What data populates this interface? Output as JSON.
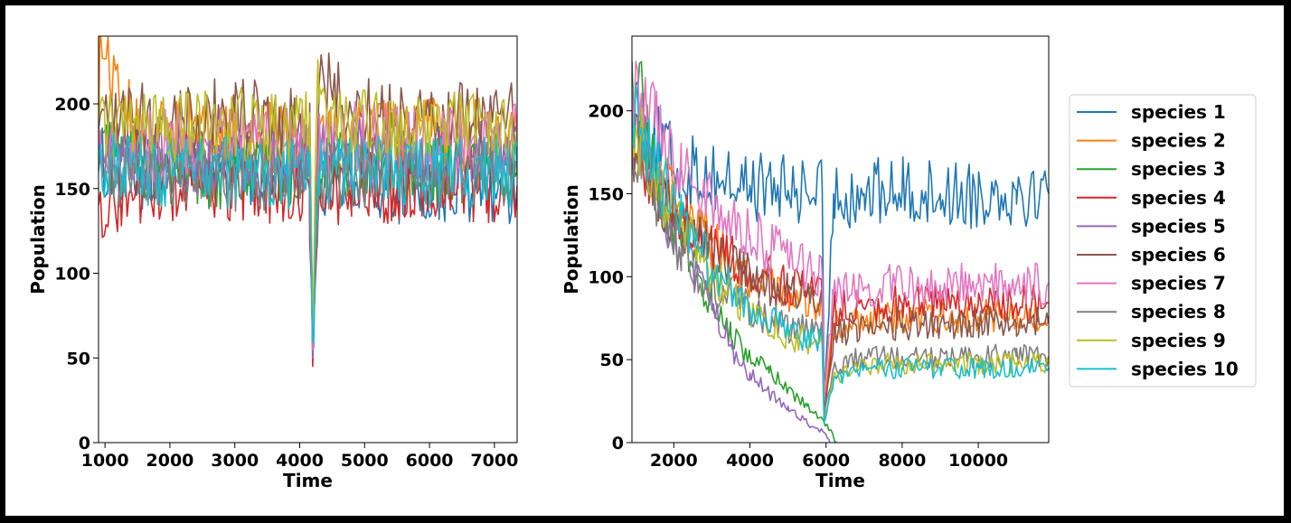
{
  "chart_data": [
    {
      "type": "line",
      "title": "",
      "xlabel": "Time",
      "ylabel": "Population",
      "xlim": [
        900,
        7350
      ],
      "ylim": [
        0,
        240
      ],
      "xticks": [
        1000,
        2000,
        3000,
        4000,
        5000,
        6000,
        7000
      ],
      "yticks": [
        0,
        50,
        100,
        150,
        200
      ],
      "series": [
        {
          "name": "species 1",
          "color": "#1f77b4",
          "x": [
            900,
            1500,
            2200,
            3000,
            3800,
            4150,
            4200,
            4300,
            4800,
            5500,
            6200,
            6900,
            7350
          ],
          "y": [
            165,
            160,
            158,
            163,
            160,
            160,
            65,
            155,
            155,
            150,
            152,
            148,
            150
          ]
        },
        {
          "name": "species 2",
          "color": "#ff7f0e",
          "x": [
            900,
            920,
            1500,
            2200,
            3000,
            3800,
            4150,
            4200,
            4300,
            4800,
            5500,
            6200,
            6900,
            7350
          ],
          "y": [
            175,
            238,
            180,
            185,
            182,
            178,
            175,
            50,
            178,
            182,
            180,
            183,
            180,
            185
          ]
        },
        {
          "name": "species 3",
          "color": "#2ca02c",
          "x": [
            900,
            1500,
            2200,
            3000,
            3800,
            4150,
            4200,
            4300,
            4800,
            5500,
            6200,
            6900,
            7350
          ],
          "y": [
            175,
            165,
            160,
            160,
            158,
            160,
            55,
            165,
            162,
            165,
            160,
            162,
            160
          ]
        },
        {
          "name": "species 4",
          "color": "#d62728",
          "x": [
            900,
            1500,
            2200,
            3000,
            3800,
            4150,
            4200,
            4300,
            4800,
            5500,
            6200,
            6900,
            7350
          ],
          "y": [
            140,
            150,
            152,
            150,
            152,
            150,
            45,
            148,
            152,
            150,
            155,
            150,
            152
          ]
        },
        {
          "name": "species 5",
          "color": "#9467bd",
          "x": [
            900,
            1500,
            2200,
            3000,
            3800,
            4150,
            4200,
            4300,
            4800,
            5500,
            6200,
            6900,
            7350
          ],
          "y": [
            170,
            168,
            168,
            170,
            170,
            168,
            50,
            168,
            170,
            168,
            168,
            170,
            168
          ]
        },
        {
          "name": "species 6",
          "color": "#8c564b",
          "x": [
            900,
            1500,
            2200,
            3000,
            3800,
            4150,
            4200,
            4300,
            4800,
            5500,
            6200,
            6900,
            7350
          ],
          "y": [
            185,
            190,
            192,
            195,
            190,
            190,
            60,
            215,
            195,
            195,
            192,
            195,
            190
          ]
        },
        {
          "name": "species 7",
          "color": "#e377c2",
          "x": [
            900,
            1500,
            2200,
            3000,
            3800,
            4150,
            4200,
            4300,
            4800,
            5500,
            6200,
            6900,
            7350
          ],
          "y": [
            175,
            175,
            178,
            175,
            178,
            175,
            55,
            178,
            180,
            178,
            176,
            178,
            178
          ]
        },
        {
          "name": "species 8",
          "color": "#7f7f7f",
          "x": [
            900,
            1500,
            2200,
            3000,
            3800,
            4150,
            4200,
            4300,
            4800,
            5500,
            6200,
            6900,
            7350
          ],
          "y": [
            160,
            160,
            162,
            158,
            160,
            160,
            60,
            158,
            160,
            160,
            160,
            158,
            160
          ]
        },
        {
          "name": "species 9",
          "color": "#bcbd22",
          "x": [
            900,
            1500,
            2200,
            3000,
            3800,
            4150,
            4200,
            4280,
            4300,
            4800,
            5500,
            6200,
            6900,
            7350
          ],
          "y": [
            190,
            185,
            185,
            188,
            185,
            185,
            70,
            226,
            200,
            188,
            185,
            185,
            188,
            185
          ]
        },
        {
          "name": "species 10",
          "color": "#17becf",
          "x": [
            900,
            1500,
            2200,
            3000,
            3800,
            4150,
            4200,
            4300,
            4800,
            5500,
            6200,
            6900,
            7350
          ],
          "y": [
            165,
            160,
            158,
            160,
            158,
            160,
            60,
            160,
            160,
            158,
            160,
            158,
            160
          ]
        }
      ]
    },
    {
      "type": "line",
      "title": "",
      "xlabel": "Time",
      "ylabel": "Population",
      "xlim": [
        900,
        11850
      ],
      "ylim": [
        0,
        245
      ],
      "xticks": [
        2000,
        4000,
        6000,
        8000,
        10000
      ],
      "yticks": [
        0,
        50,
        100,
        150,
        200
      ],
      "legend": "right",
      "series": [
        {
          "name": "species 1",
          "color": "#1f77b4",
          "x": [
            900,
            1500,
            2200,
            3000,
            4000,
            5000,
            5900,
            5950,
            6200,
            7000,
            8000,
            9000,
            10000,
            11000,
            11850
          ],
          "y": [
            210,
            180,
            165,
            160,
            155,
            152,
            152,
            20,
            150,
            150,
            152,
            150,
            150,
            152,
            150
          ]
        },
        {
          "name": "species 2",
          "color": "#ff7f0e",
          "x": [
            900,
            1500,
            2200,
            3000,
            4000,
            5000,
            5900,
            5950,
            6200,
            6800,
            8000,
            9000,
            10000,
            11000,
            11850
          ],
          "y": [
            205,
            170,
            140,
            120,
            100,
            90,
            82,
            20,
            70,
            75,
            76,
            76,
            76,
            76,
            76
          ]
        },
        {
          "name": "species 3",
          "color": "#2ca02c",
          "x": [
            900,
            1500,
            2200,
            3000,
            3500,
            4000,
            4500,
            5000,
            5500,
            5950,
            6300
          ],
          "y": [
            230,
            165,
            120,
            85,
            65,
            52,
            42,
            32,
            22,
            12,
            0
          ]
        },
        {
          "name": "species 4",
          "color": "#d62728",
          "x": [
            900,
            1500,
            2200,
            3000,
            4000,
            5000,
            5900,
            5950,
            6200,
            6800,
            8000,
            9000,
            10000,
            11000,
            11850
          ],
          "y": [
            190,
            160,
            135,
            118,
            105,
            95,
            88,
            15,
            80,
            82,
            84,
            84,
            84,
            84,
            84
          ]
        },
        {
          "name": "species 5",
          "color": "#9467bd",
          "x": [
            900,
            1500,
            2200,
            3000,
            3500,
            4000,
            4500,
            5000,
            5500,
            6000,
            6100
          ],
          "y": [
            200,
            155,
            115,
            80,
            58,
            42,
            30,
            22,
            12,
            5,
            0
          ]
        },
        {
          "name": "species 6",
          "color": "#8c564b",
          "x": [
            900,
            1500,
            2200,
            3000,
            4000,
            5000,
            5900,
            5950,
            6200,
            6800,
            8000,
            9000,
            10000,
            11000,
            11850
          ],
          "y": [
            180,
            155,
            130,
            115,
            100,
            90,
            82,
            18,
            65,
            70,
            72,
            72,
            72,
            72,
            72
          ]
        },
        {
          "name": "species 7",
          "color": "#e377c2",
          "x": [
            900,
            1500,
            2200,
            3000,
            4000,
            5000,
            5900,
            5950,
            6200,
            6800,
            8000,
            9000,
            10000,
            11000,
            11850
          ],
          "y": [
            215,
            190,
            165,
            145,
            125,
            110,
            100,
            25,
            90,
            92,
            95,
            95,
            96,
            96,
            96
          ]
        },
        {
          "name": "species 8",
          "color": "#7f7f7f",
          "x": [
            900,
            1500,
            2200,
            3000,
            4000,
            5000,
            5900,
            5950,
            6200,
            6800,
            8000,
            9000,
            10000,
            11000,
            11850
          ],
          "y": [
            185,
            150,
            115,
            95,
            80,
            70,
            65,
            15,
            45,
            50,
            52,
            52,
            52,
            52,
            52
          ]
        },
        {
          "name": "species 9",
          "color": "#bcbd22",
          "x": [
            900,
            1500,
            2200,
            3000,
            4000,
            5000,
            5900,
            5950,
            6200,
            6800,
            8000,
            9000,
            10000,
            11000,
            11850
          ],
          "y": [
            195,
            160,
            130,
            100,
            78,
            65,
            58,
            15,
            40,
            46,
            48,
            48,
            48,
            48,
            48
          ]
        },
        {
          "name": "species 10",
          "color": "#17becf",
          "x": [
            900,
            1500,
            2200,
            3000,
            4000,
            5000,
            5900,
            5950,
            6200,
            6800,
            8000,
            9000,
            10000,
            11000,
            11850
          ],
          "y": [
            200,
            165,
            135,
            105,
            80,
            68,
            60,
            12,
            38,
            44,
            45,
            45,
            45,
            45,
            45
          ]
        }
      ]
    }
  ]
}
